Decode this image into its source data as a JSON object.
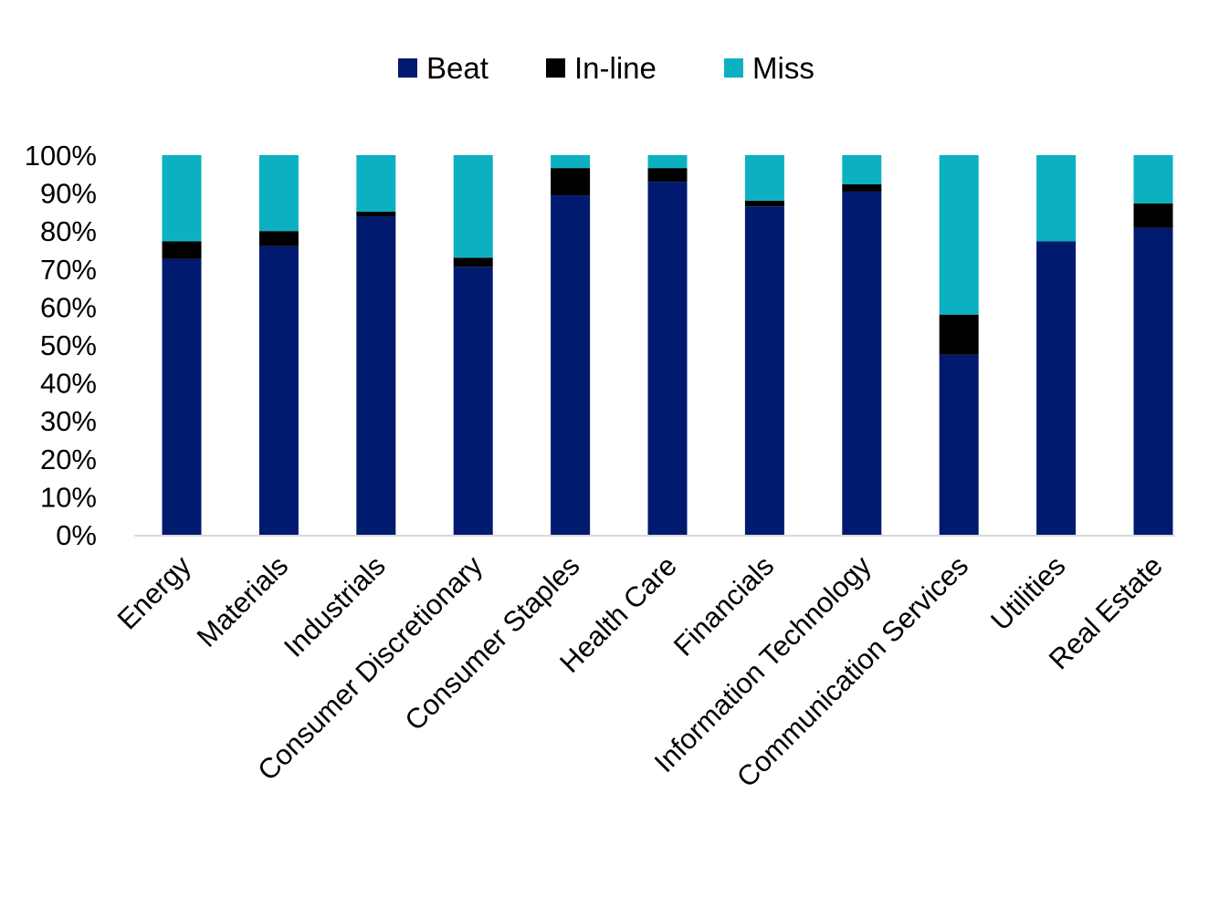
{
  "chart_data": {
    "type": "bar",
    "stacked": true,
    "categories": [
      "Energy",
      "Materials",
      "Industrials",
      "Consumer Discretionary",
      "Consumer Staples",
      "Health Care",
      "Financials",
      "Information Technology",
      "Communication Services",
      "Utilities",
      "Real Estate"
    ],
    "series": [
      {
        "name": "Beat",
        "color": "#001A70",
        "values": [
          72.7,
          76.0,
          83.9,
          70.6,
          89.4,
          93.0,
          86.5,
          90.4,
          47.4,
          77.3,
          80.8
        ]
      },
      {
        "name": "In-line",
        "color": "#000000",
        "values": [
          4.6,
          4.0,
          1.2,
          2.4,
          7.2,
          3.6,
          1.5,
          1.9,
          10.6,
          0.0,
          6.5
        ]
      },
      {
        "name": "Miss",
        "color": "#0CB1C1",
        "values": [
          22.7,
          20.0,
          14.9,
          27.0,
          3.4,
          3.4,
          12.0,
          7.7,
          42.0,
          22.7,
          12.7
        ]
      }
    ],
    "ylim": [
      0,
      100
    ],
    "yticks": [
      "0%",
      "10%",
      "20%",
      "30%",
      "40%",
      "50%",
      "60%",
      "70%",
      "80%",
      "90%",
      "100%"
    ],
    "grid": false,
    "legend_position": "top-center",
    "title": "",
    "xlabel": "",
    "ylabel": ""
  }
}
